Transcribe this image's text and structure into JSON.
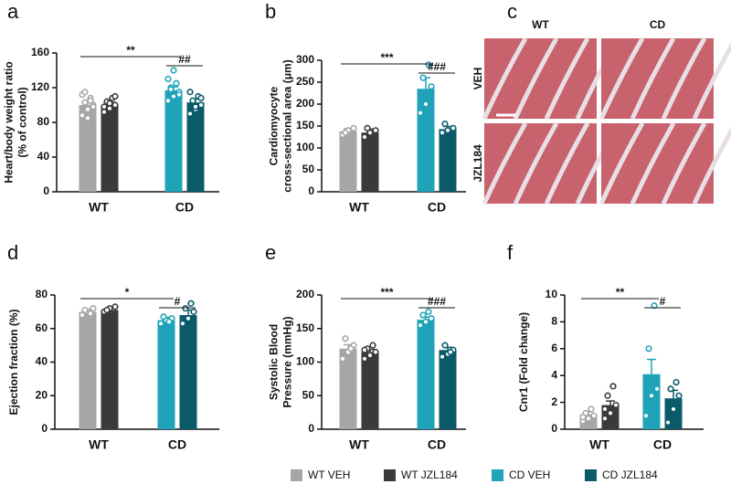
{
  "chart_data": [
    {
      "type": "bar",
      "panel": "a",
      "ylabel": [
        "Heart/body weight ratio",
        "(% of control)"
      ],
      "categories": [
        "WT",
        "CD"
      ],
      "ylim": [
        0,
        160
      ],
      "yticks": [
        0,
        40,
        80,
        120,
        160
      ],
      "significance": [
        "**",
        "##"
      ],
      "series": [
        {
          "name": "WT VEH",
          "color": "#a6a6a8",
          "values": [
            100,
            null
          ],
          "errors": [
            5,
            null
          ],
          "points": [
            [
              88,
              95,
              100,
              103,
              108,
              112,
              85,
              98,
              115,
              105
            ],
            null
          ]
        },
        {
          "name": "WT JZL184",
          "color": "#3a3a3c",
          "values": [
            100,
            null
          ],
          "errors": [
            3,
            null
          ],
          "points": [
            [
              92,
              96,
              100,
              104,
              108,
              98,
              102,
              110
            ],
            null
          ]
        },
        {
          "name": "CD VEH",
          "color": "#1fa3b8",
          "values": [
            null,
            117
          ],
          "errors": [
            null,
            4
          ],
          "points": [
            null,
            [
              105,
              110,
              115,
              120,
              125,
              130,
              140,
              112,
              118
            ]
          ]
        },
        {
          "name": "CD JZL184",
          "color": "#0b5a6a",
          "values": [
            null,
            103
          ],
          "errors": [
            null,
            4
          ],
          "points": [
            null,
            [
              90,
              95,
              100,
              105,
              110,
              115,
              98,
              108
            ]
          ]
        }
      ]
    },
    {
      "type": "bar",
      "panel": "b",
      "ylabel": [
        "Cardiomyocyte",
        "cross-sectional area (μm)"
      ],
      "categories": [
        "WT",
        "CD"
      ],
      "ylim": [
        0,
        300
      ],
      "yticks": [
        0,
        50,
        100,
        150,
        200,
        250,
        300
      ],
      "significance": [
        "***",
        "###"
      ],
      "series": [
        {
          "name": "WT VEH",
          "color": "#a6a6a8",
          "values": [
            138,
            null
          ],
          "errors": [
            6,
            null
          ],
          "points": [
            [
              130,
              140,
              145,
              135
            ],
            null
          ]
        },
        {
          "name": "WT JZL184",
          "color": "#3a3a3c",
          "values": [
            135,
            null
          ],
          "errors": [
            8,
            null
          ],
          "points": [
            [
              125,
              135,
              140,
              145
            ],
            null
          ]
        },
        {
          "name": "CD VEH",
          "color": "#1fa3b8",
          "values": [
            null,
            235
          ],
          "errors": [
            null,
            25
          ],
          "points": [
            null,
            [
              180,
              200,
              240,
              260,
              290
            ]
          ]
        },
        {
          "name": "CD JZL184",
          "color": "#0b5a6a",
          "values": [
            null,
            143
          ],
          "errors": [
            null,
            6
          ],
          "points": [
            null,
            [
              135,
              140,
              145,
              155
            ]
          ]
        }
      ]
    },
    {
      "type": "image",
      "panel": "c",
      "columns": [
        "WT",
        "CD"
      ],
      "rows": [
        "VEH",
        "JZL184"
      ]
    },
    {
      "type": "bar",
      "panel": "d",
      "ylabel": [
        "Ejection fraction (%)"
      ],
      "categories": [
        "WT",
        "CD"
      ],
      "ylim": [
        0,
        80
      ],
      "yticks": [
        0,
        20,
        40,
        60,
        80
      ],
      "significance": [
        "*",
        "#"
      ],
      "series": [
        {
          "name": "WT VEH",
          "color": "#a6a6a8",
          "values": [
            70,
            null
          ],
          "errors": [
            1.5,
            null
          ],
          "points": [
            [
              68,
              70,
              72,
              71,
              69
            ],
            null
          ]
        },
        {
          "name": "WT JZL184",
          "color": "#3a3a3c",
          "values": [
            71,
            null
          ],
          "errors": [
            1,
            null
          ],
          "points": [
            [
              70,
              72,
              73,
              71
            ],
            null
          ]
        },
        {
          "name": "CD VEH",
          "color": "#1fa3b8",
          "values": [
            null,
            65
          ],
          "errors": [
            null,
            1.5
          ],
          "points": [
            null,
            [
              63,
              65,
              66,
              67,
              64
            ]
          ]
        },
        {
          "name": "CD JZL184",
          "color": "#0b5a6a",
          "values": [
            null,
            68
          ],
          "errors": [
            null,
            3
          ],
          "points": [
            null,
            [
              63,
              66,
              70,
              72,
              75
            ]
          ]
        }
      ]
    },
    {
      "type": "bar",
      "panel": "e",
      "ylabel": [
        "Systolic Blood",
        "Pressure (mmHg)"
      ],
      "categories": [
        "WT",
        "CD"
      ],
      "ylim": [
        0,
        200
      ],
      "yticks": [
        0,
        50,
        100,
        150,
        200
      ],
      "significance": [
        "***",
        "###"
      ],
      "series": [
        {
          "name": "WT VEH",
          "color": "#a6a6a8",
          "values": [
            120,
            null
          ],
          "errors": [
            6,
            null
          ],
          "points": [
            [
              105,
              115,
              125,
              135,
              120
            ],
            null
          ]
        },
        {
          "name": "WT JZL184",
          "color": "#3a3a3c",
          "values": [
            115,
            null
          ],
          "errors": [
            4,
            null
          ],
          "points": [
            [
              105,
              110,
              115,
              120,
              125,
              118
            ],
            null
          ]
        },
        {
          "name": "CD VEH",
          "color": "#1fa3b8",
          "values": [
            null,
            163
          ],
          "errors": [
            null,
            4
          ],
          "points": [
            null,
            [
              155,
              160,
              165,
              170,
              175
            ]
          ]
        },
        {
          "name": "CD JZL184",
          "color": "#0b5a6a",
          "values": [
            null,
            118
          ],
          "errors": [
            null,
            4
          ],
          "points": [
            null,
            [
              108,
              112,
              118,
              125,
              115
            ]
          ]
        }
      ]
    },
    {
      "type": "bar",
      "panel": "f",
      "ylabel": [
        "Cnr1 (Fold change)"
      ],
      "categories": [
        "WT",
        "CD"
      ],
      "ylim": [
        0,
        10
      ],
      "yticks": [
        0,
        2,
        4,
        6,
        8,
        10
      ],
      "significance": [
        "**",
        "#"
      ],
      "series": [
        {
          "name": "WT VEH",
          "color": "#a6a6a8",
          "values": [
            1.1,
            null
          ],
          "errors": [
            0.2,
            null
          ],
          "points": [
            [
              0.6,
              0.8,
              1,
              1.2,
              1.5,
              0.9
            ],
            null
          ]
        },
        {
          "name": "WT JZL184",
          "color": "#3a3a3c",
          "values": [
            1.8,
            null
          ],
          "errors": [
            0.3,
            null
          ],
          "points": [
            [
              0.8,
              1.2,
              1.8,
              2.5,
              3.2,
              1.5
            ],
            null
          ]
        },
        {
          "name": "CD VEH",
          "color": "#1fa3b8",
          "values": [
            null,
            4.1
          ],
          "errors": [
            null,
            1.1
          ],
          "points": [
            null,
            [
              1,
              2.5,
              3,
              6,
              9.2
            ]
          ]
        },
        {
          "name": "CD JZL184",
          "color": "#0b5a6a",
          "values": [
            null,
            2.3
          ],
          "errors": [
            null,
            0.6
          ],
          "points": [
            null,
            [
              0.5,
              1.5,
              2.5,
              3,
              3.5
            ]
          ]
        }
      ]
    }
  ]
}
